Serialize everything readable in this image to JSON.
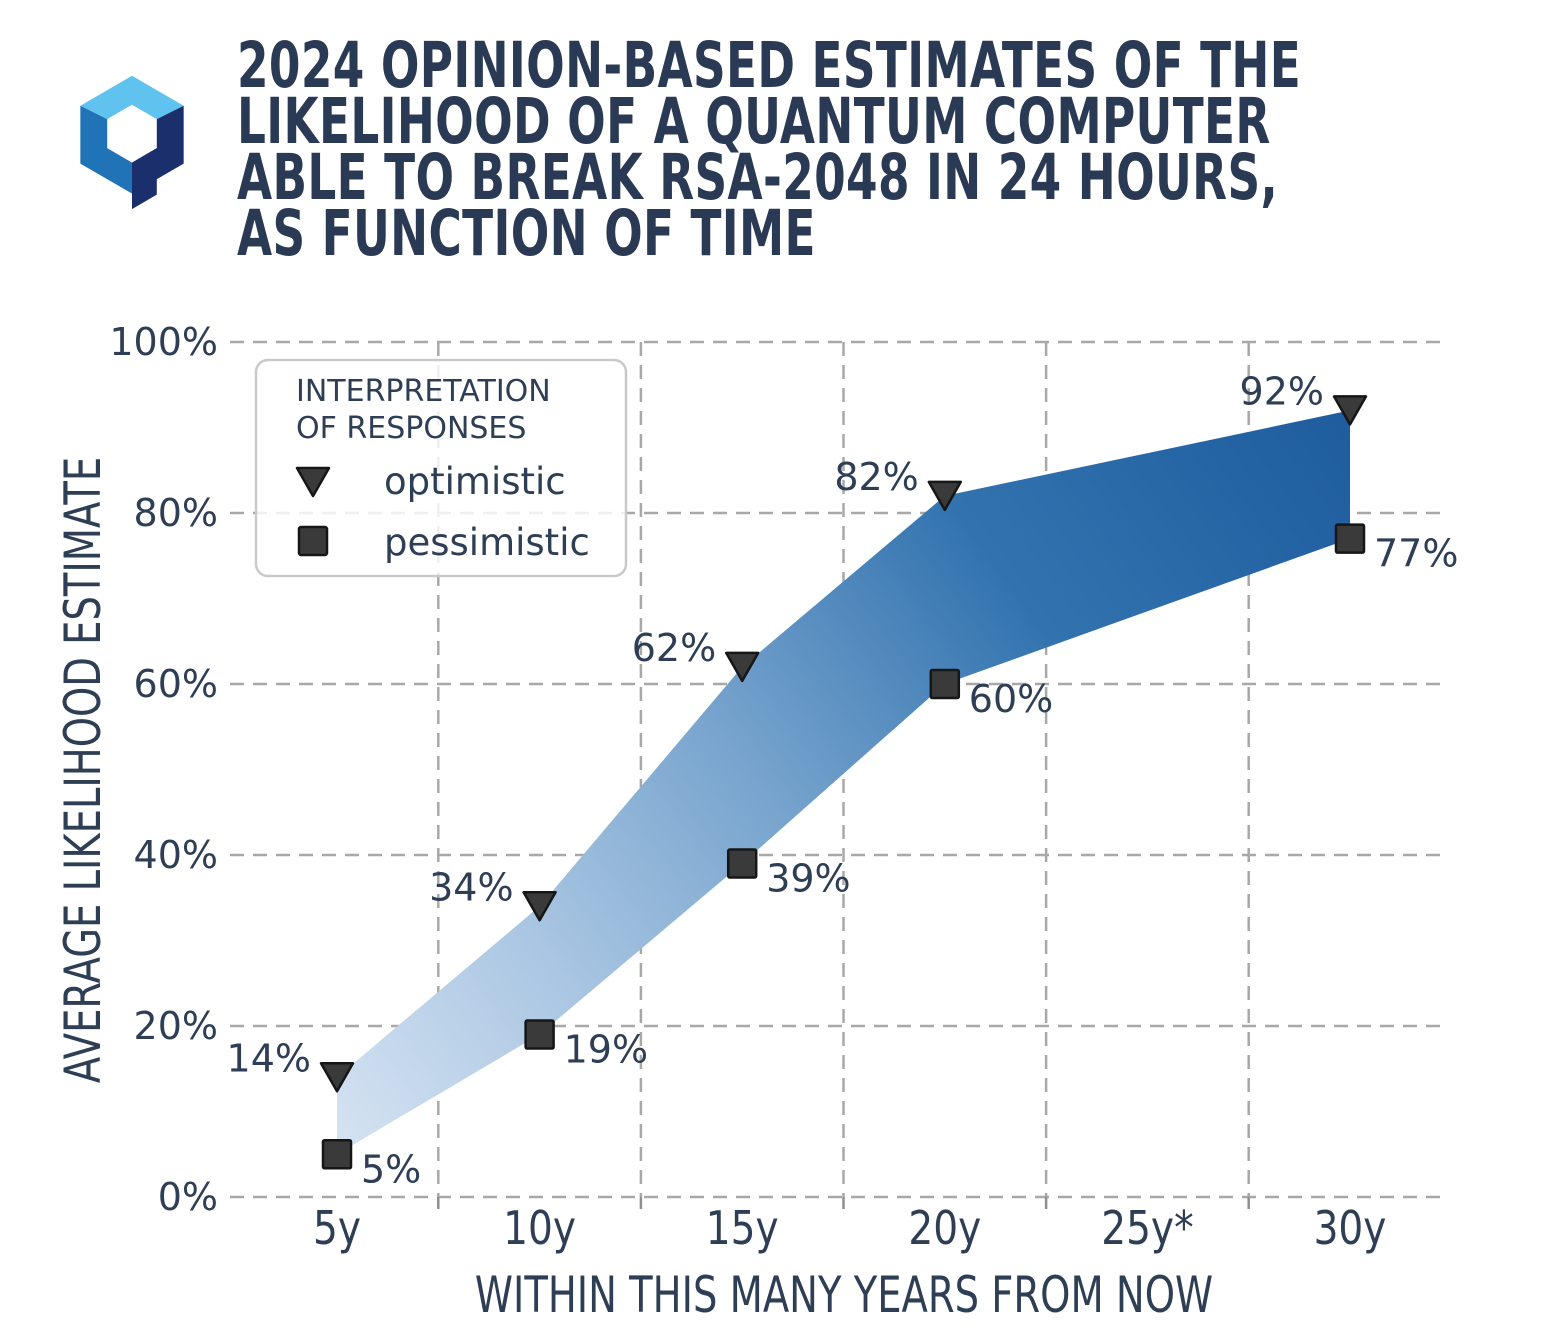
{
  "header": {
    "title_lines": [
      "2024 OPINION-BASED ESTIMATES OF THE",
      "LIKELIHOOD OF A QUANTUM COMPUTER",
      "ABLE TO BREAK RSA-2048 IN 24 HOURS,",
      "AS FUNCTION OF TIME"
    ],
    "title_color": "#2b3a54",
    "logo_colors": {
      "top_face": "#5FC2EF",
      "left_face": "#2173B8",
      "right_face": "#1C2F6D"
    }
  },
  "chart_data": {
    "type": "area",
    "title": "2024 OPINION-BASED ESTIMATES OF THE LIKELIHOOD OF A QUANTUM COMPUTER ABLE TO BREAK RSA-2048 IN 24 HOURS, AS FUNCTION OF TIME",
    "categories": [
      "5y",
      "10y",
      "15y",
      "20y",
      "25y*",
      "30y"
    ],
    "series": [
      {
        "name": "optimistic",
        "marker": "triangle-down",
        "values": [
          14,
          34,
          62,
          82,
          null,
          92
        ]
      },
      {
        "name": "pessimistic",
        "marker": "square",
        "values": [
          5,
          19,
          39,
          60,
          null,
          77
        ]
      }
    ],
    "xlabel": "WITHIN THIS MANY YEARS FROM NOW",
    "ylabel": "AVERAGE LIKELIHOOD ESTIMATE",
    "y_ticks": [
      "0%",
      "20%",
      "40%",
      "60%",
      "80%",
      "100%"
    ],
    "ylim": [
      0,
      100
    ],
    "legend_position": "upper left",
    "grid": "dashed gray, horizontal at 20% steps, vertical midway between categories",
    "band_gradient": [
      {
        "offset": 0,
        "color": "#d6e3f2"
      },
      {
        "offset": 0.22,
        "color": "#abc7e3"
      },
      {
        "offset": 0.45,
        "color": "#76a3cd"
      },
      {
        "offset": 0.7,
        "color": "#3273af"
      },
      {
        "offset": 1,
        "color": "#1e5c9e"
      }
    ],
    "style": {
      "marker_fill": "#3a3a3a",
      "marker_edge": "#161616",
      "gridline_color": "#a8a8a8",
      "text_color": "#2e3e55"
    }
  },
  "legend": {
    "title_lines": [
      "INTERPRETATION",
      "OF RESPONSES"
    ],
    "items": [
      {
        "label": "optimistic",
        "marker": "triangle-down"
      },
      {
        "label": "pessimistic",
        "marker": "square"
      }
    ]
  }
}
